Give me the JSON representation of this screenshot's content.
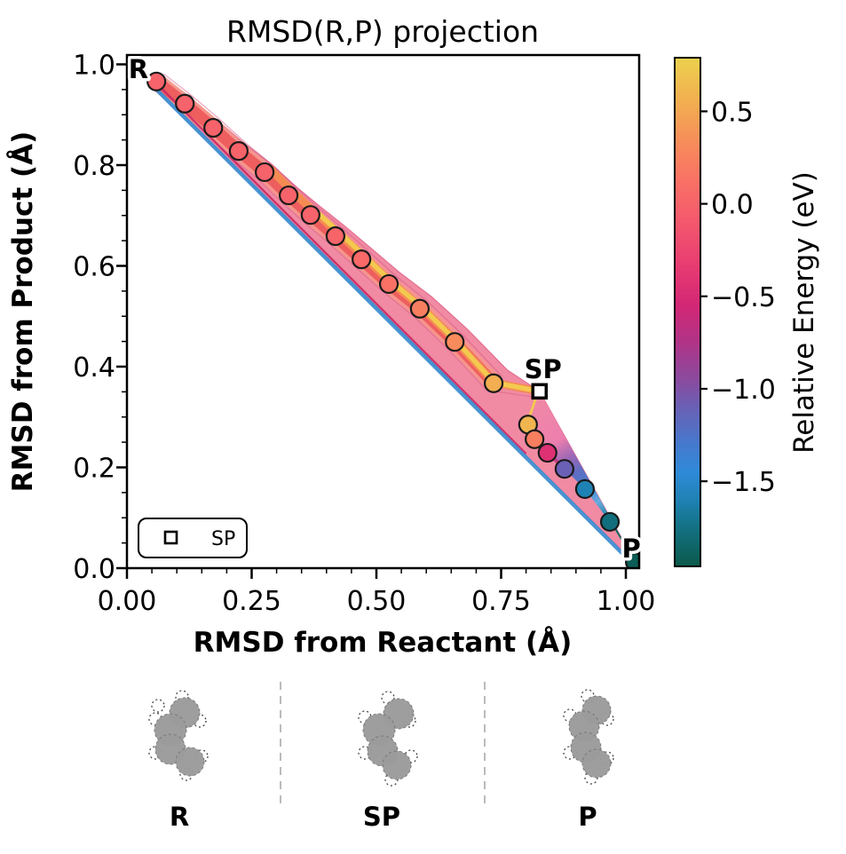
{
  "figure": {
    "background": "#ffffff"
  },
  "chart_data": {
    "type": "contour_scatter",
    "title": "RMSD(R,P) projection",
    "xlabel": "RMSD from Reactant (Å)",
    "ylabel": "RMSD from Product (Å)",
    "xlim": [
      0.0,
      1.027
    ],
    "ylim": [
      0.0,
      1.018
    ],
    "grid": false,
    "xticks": {
      "values": [
        0.0,
        0.25,
        0.5,
        0.75,
        1.0
      ],
      "labels": [
        "0.00",
        "0.25",
        "0.50",
        "0.75",
        "1.00"
      ]
    },
    "yticks": {
      "values": [
        0.0,
        0.2,
        0.4,
        0.6,
        0.8,
        1.0
      ],
      "labels": [
        "0.0",
        "0.2",
        "0.4",
        "0.6",
        "0.8",
        "1.0"
      ]
    },
    "minor_tick_step": 0.05,
    "path_points": [
      {
        "x": 0.059,
        "y": 0.966,
        "energy": 0.0
      },
      {
        "x": 0.116,
        "y": 0.922,
        "energy": 0.0
      },
      {
        "x": 0.173,
        "y": 0.874,
        "energy": 0.0
      },
      {
        "x": 0.224,
        "y": 0.828,
        "energy": 0.0
      },
      {
        "x": 0.276,
        "y": 0.786,
        "energy": 0.0
      },
      {
        "x": 0.324,
        "y": 0.74,
        "energy": 0.0
      },
      {
        "x": 0.368,
        "y": 0.701,
        "energy": 0.0
      },
      {
        "x": 0.418,
        "y": 0.659,
        "energy": 0.02
      },
      {
        "x": 0.47,
        "y": 0.613,
        "energy": 0.05
      },
      {
        "x": 0.525,
        "y": 0.564,
        "energy": 0.12
      },
      {
        "x": 0.587,
        "y": 0.515,
        "energy": 0.22
      },
      {
        "x": 0.657,
        "y": 0.449,
        "energy": 0.32
      },
      {
        "x": 0.735,
        "y": 0.367,
        "energy": 0.55
      },
      {
        "x": 0.804,
        "y": 0.285,
        "energy": 0.6
      },
      {
        "x": 0.817,
        "y": 0.256,
        "energy": 0.22
      },
      {
        "x": 0.843,
        "y": 0.229,
        "energy": -0.45
      },
      {
        "x": 0.877,
        "y": 0.197,
        "energy": -1.1
      },
      {
        "x": 0.918,
        "y": 0.157,
        "energy": -1.6
      },
      {
        "x": 0.968,
        "y": 0.092,
        "energy": -1.78
      },
      {
        "x": 1.018,
        "y": 0.012,
        "energy": -1.92
      }
    ],
    "saddle_point": {
      "x": 0.827,
      "y": 0.351,
      "marker": "square"
    },
    "band_tip_product": {
      "x": 1.022,
      "y": 0.006
    },
    "annotations": [
      {
        "text": "R",
        "x": 0.023,
        "y": 0.99
      },
      {
        "text": "SP",
        "x": 0.834,
        "y": 0.395
      },
      {
        "text": "P",
        "x": 1.011,
        "y": 0.039
      }
    ],
    "legend": {
      "label": "SP",
      "marker": "square"
    },
    "colorbar": {
      "label": "Relative Energy (eV)",
      "vmin": -1.96,
      "vmax": 0.79,
      "ticks": {
        "values": [
          0.5,
          0.0,
          -0.5,
          -1.0,
          -1.5
        ],
        "labels": [
          "0.5",
          "0.0",
          "−0.5",
          "−1.0",
          "−1.5"
        ]
      },
      "colormap_stops": [
        [
          0.79,
          "#ecd14e"
        ],
        [
          0.55,
          "#f2ae50"
        ],
        [
          0.3,
          "#f8885c"
        ],
        [
          0.1,
          "#f96e66"
        ],
        [
          -0.1,
          "#f4586d"
        ],
        [
          -0.35,
          "#e63a72"
        ],
        [
          -0.55,
          "#d32775"
        ],
        [
          -0.75,
          "#b03487"
        ],
        [
          -0.95,
          "#8a4a9e"
        ],
        [
          -1.1,
          "#6a60b5"
        ],
        [
          -1.3,
          "#4579cd"
        ],
        [
          -1.45,
          "#2f8ad8"
        ],
        [
          -1.6,
          "#1f82b4"
        ],
        [
          -1.72,
          "#15758d"
        ],
        [
          -1.85,
          "#0f6668"
        ],
        [
          -1.96,
          "#0b5a4b"
        ]
      ]
    },
    "band_colors": {
      "outer_pink": "#f08ba3",
      "outer_edge": "#e26e91",
      "salmon": "#f5968b",
      "red_path": "#ee5e5e",
      "orange_streak": "#f58b52",
      "yellow_streak": "#f3c94f",
      "crimson_edge": "#c92562",
      "blue_under": "#3e8ed2",
      "magenta_cross": "#c2307a",
      "texture": "#d85a82"
    }
  },
  "molecule_panel": {
    "atom_color": "#9b9b9b",
    "items": [
      {
        "label": "R"
      },
      {
        "label": "SP"
      },
      {
        "label": "P"
      }
    ]
  }
}
